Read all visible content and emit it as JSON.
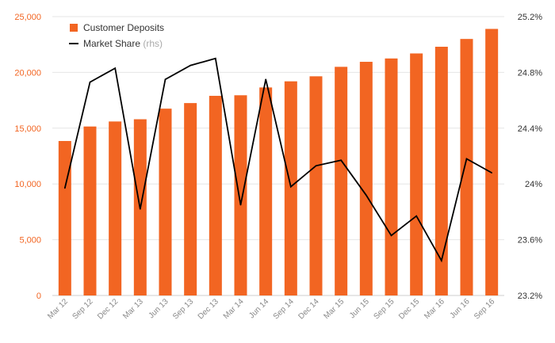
{
  "chart_data": {
    "type": "bar",
    "categories": [
      "Mar 12",
      "Sep 12",
      "Dec 12",
      "Mar 13",
      "Jun 13",
      "Sep 13",
      "Dec 13",
      "Mar 14",
      "Jun 14",
      "Sep 14",
      "Dec 14",
      "Mar 15",
      "Jun 15",
      "Sep 15",
      "Dec 15",
      "Mar 16",
      "Jun 16",
      "Sep 16"
    ],
    "series": [
      {
        "name": "Customer Deposits",
        "kind": "bar",
        "axis": "left",
        "color": "#f26522",
        "values": [
          13850,
          15150,
          15600,
          15800,
          16750,
          17250,
          17900,
          17950,
          18650,
          19200,
          19650,
          20500,
          20950,
          21250,
          21700,
          22300,
          23000,
          23900
        ]
      },
      {
        "name": "Market Share",
        "name_suffix": "(rhs)",
        "kind": "line",
        "axis": "right",
        "color": "#000000",
        "values": [
          23.97,
          24.73,
          24.83,
          23.82,
          24.75,
          24.85,
          24.9,
          23.85,
          24.75,
          23.98,
          24.13,
          24.17,
          23.92,
          23.63,
          23.77,
          23.45,
          24.18,
          24.08
        ]
      }
    ],
    "left_axis": {
      "ylim": [
        0,
        25000
      ],
      "ticks": [
        0,
        5000,
        10000,
        15000,
        20000,
        25000
      ],
      "tick_labels": [
        "0",
        "5,000",
        "10,000",
        "15,000",
        "20,000",
        "25,000"
      ],
      "color": "#f26522"
    },
    "right_axis": {
      "ylim": [
        23.2,
        25.2
      ],
      "ticks": [
        23.2,
        23.6,
        24.0,
        24.4,
        24.8,
        25.2
      ],
      "tick_labels": [
        "23.2%",
        "23.6%",
        "24%",
        "24.4%",
        "24.8%",
        "25.2%"
      ]
    },
    "grid": true,
    "legend_position": "top-left",
    "title": "",
    "xlabel": "",
    "ylabel": ""
  }
}
